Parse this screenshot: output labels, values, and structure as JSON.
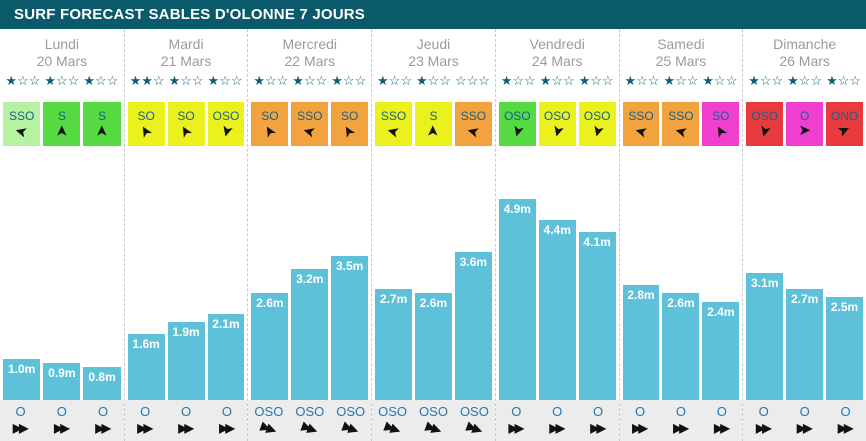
{
  "header": {
    "title": "SURF FORECAST SABLES D'OLONNE 7 JOURS",
    "bg_color": "#0b5a6b"
  },
  "colors": {
    "bar": "#5ec1da",
    "star": "#0d5f76",
    "day_text": "#9b9b9b",
    "wind_label": "#17618c",
    "swell_label": "#2a76ad",
    "swell_row_bg": "#ececec",
    "wind_palegreen": "#b6f2a2",
    "wind_green": "#55da41",
    "wind_yellow": "#eaf11c",
    "wind_orange": "#f2a33e",
    "wind_magenta": "#f03ecf",
    "wind_red": "#e93a3d"
  },
  "chart_data": {
    "type": "bar",
    "title": "SURF FORECAST SABLES D'OLONNE 7 JOURS",
    "unit": "m",
    "ylim": [
      0,
      6
    ],
    "bar_color": "#5ec1da",
    "categories": [
      "Lundi 20 Mars",
      "Mardi 21 Mars",
      "Mercredi 22 Mars",
      "Jeudi 23 Mars",
      "Vendredi 24 Mars",
      "Samedi 25 Mars",
      "Dimanche 26 Mars"
    ],
    "values_per_day": [
      [
        1.0,
        0.9,
        0.8
      ],
      [
        1.6,
        1.9,
        2.1
      ],
      [
        2.6,
        3.2,
        3.5
      ],
      [
        2.7,
        2.6,
        3.6
      ],
      [
        4.9,
        4.4,
        4.1
      ],
      [
        2.8,
        2.6,
        2.4
      ],
      [
        3.1,
        2.7,
        2.5
      ]
    ],
    "values_flat": [
      1.0,
      0.9,
      0.8,
      1.6,
      1.9,
      2.1,
      2.6,
      3.2,
      3.5,
      2.7,
      2.6,
      3.6,
      4.9,
      4.4,
      4.1,
      2.8,
      2.6,
      2.4,
      3.1,
      2.7,
      2.5
    ],
    "star_ratings_per_day": [
      [
        1,
        1,
        1
      ],
      [
        2,
        1,
        1
      ],
      [
        1,
        1,
        1
      ],
      [
        1,
        1,
        0
      ],
      [
        1,
        1,
        1
      ],
      [
        1,
        1,
        1
      ],
      [
        1,
        1,
        1
      ]
    ],
    "stars_max": 3
  },
  "days": [
    {
      "name": "Lundi",
      "date": "20 Mars",
      "stars": [
        1,
        1,
        1
      ],
      "wind": [
        {
          "dir": "SSO",
          "color": "#b6f2a2",
          "arrow_deg": -75
        },
        {
          "dir": "S",
          "color": "#55da41",
          "arrow_deg": 0
        },
        {
          "dir": "S",
          "color": "#55da41",
          "arrow_deg": 0
        }
      ],
      "waves": [
        1.0,
        0.9,
        0.8
      ],
      "wave_labels": [
        "1.0m",
        "0.9m",
        "0.8m"
      ],
      "swell": [
        {
          "dir": "O",
          "arrow_deg": 0
        },
        {
          "dir": "O",
          "arrow_deg": 0
        },
        {
          "dir": "O",
          "arrow_deg": 0
        }
      ]
    },
    {
      "name": "Mardi",
      "date": "21 Mars",
      "stars": [
        2,
        1,
        1
      ],
      "wind": [
        {
          "dir": "SO",
          "color": "#eaf11c",
          "arrow_deg": -30
        },
        {
          "dir": "SO",
          "color": "#eaf11c",
          "arrow_deg": -30
        },
        {
          "dir": "OSO",
          "color": "#eaf11c",
          "arrow_deg": 195
        }
      ],
      "waves": [
        1.6,
        1.9,
        2.1
      ],
      "wave_labels": [
        "1.6m",
        "1.9m",
        "2.1m"
      ],
      "swell": [
        {
          "dir": "O",
          "arrow_deg": 0
        },
        {
          "dir": "O",
          "arrow_deg": 0
        },
        {
          "dir": "O",
          "arrow_deg": 0
        }
      ]
    },
    {
      "name": "Mercredi",
      "date": "22 Mars",
      "stars": [
        1,
        1,
        1
      ],
      "wind": [
        {
          "dir": "SO",
          "color": "#f2a33e",
          "arrow_deg": -30
        },
        {
          "dir": "SSO",
          "color": "#f2a33e",
          "arrow_deg": -75
        },
        {
          "dir": "SO",
          "color": "#f2a33e",
          "arrow_deg": -30
        }
      ],
      "waves": [
        2.6,
        3.2,
        3.5
      ],
      "wave_labels": [
        "2.6m",
        "3.2m",
        "3.5m"
      ],
      "swell": [
        {
          "dir": "OSO",
          "arrow_deg": 20
        },
        {
          "dir": "OSO",
          "arrow_deg": 20
        },
        {
          "dir": "OSO",
          "arrow_deg": 20
        }
      ]
    },
    {
      "name": "Jeudi",
      "date": "23 Mars",
      "stars": [
        1,
        1,
        0
      ],
      "wind": [
        {
          "dir": "SSO",
          "color": "#eaf11c",
          "arrow_deg": -75
        },
        {
          "dir": "S",
          "color": "#eaf11c",
          "arrow_deg": 0
        },
        {
          "dir": "SSO",
          "color": "#f2a33e",
          "arrow_deg": -75
        }
      ],
      "waves": [
        2.7,
        2.6,
        3.6
      ],
      "wave_labels": [
        "2.7m",
        "2.6m",
        "3.6m"
      ],
      "swell": [
        {
          "dir": "OSO",
          "arrow_deg": 20
        },
        {
          "dir": "OSO",
          "arrow_deg": 20
        },
        {
          "dir": "OSO",
          "arrow_deg": 20
        }
      ]
    },
    {
      "name": "Vendredi",
      "date": "24 Mars",
      "stars": [
        1,
        1,
        1
      ],
      "wind": [
        {
          "dir": "OSO",
          "color": "#55da41",
          "arrow_deg": 195
        },
        {
          "dir": "OSO",
          "color": "#eaf11c",
          "arrow_deg": 195
        },
        {
          "dir": "OSO",
          "color": "#eaf11c",
          "arrow_deg": 195
        }
      ],
      "waves": [
        4.9,
        4.4,
        4.1
      ],
      "wave_labels": [
        "4.9m",
        "4.4m",
        "4.1m"
      ],
      "swell": [
        {
          "dir": "O",
          "arrow_deg": 0
        },
        {
          "dir": "O",
          "arrow_deg": 0
        },
        {
          "dir": "O",
          "arrow_deg": 0
        }
      ]
    },
    {
      "name": "Samedi",
      "date": "25 Mars",
      "stars": [
        1,
        1,
        1
      ],
      "wind": [
        {
          "dir": "SSO",
          "color": "#f2a33e",
          "arrow_deg": -75
        },
        {
          "dir": "SSO",
          "color": "#f2a33e",
          "arrow_deg": -75
        },
        {
          "dir": "SO",
          "color": "#f03ecf",
          "arrow_deg": -30
        }
      ],
      "waves": [
        2.8,
        2.6,
        2.4
      ],
      "wave_labels": [
        "2.8m",
        "2.6m",
        "2.4m"
      ],
      "swell": [
        {
          "dir": "O",
          "arrow_deg": 0
        },
        {
          "dir": "O",
          "arrow_deg": 0
        },
        {
          "dir": "O",
          "arrow_deg": 0
        }
      ]
    },
    {
      "name": "Dimanche",
      "date": "26 Mars",
      "stars": [
        1,
        1,
        1
      ],
      "wind": [
        {
          "dir": "OSO",
          "color": "#e93a3d",
          "arrow_deg": 195
        },
        {
          "dir": "O",
          "color": "#f03ecf",
          "arrow_deg": 90
        },
        {
          "dir": "ONO",
          "color": "#e93a3d",
          "arrow_deg": 65
        }
      ],
      "waves": [
        3.1,
        2.7,
        2.5
      ],
      "wave_labels": [
        "3.1m",
        "2.7m",
        "2.5m"
      ],
      "swell": [
        {
          "dir": "O",
          "arrow_deg": 0
        },
        {
          "dir": "O",
          "arrow_deg": 0
        },
        {
          "dir": "O",
          "arrow_deg": 0
        }
      ]
    }
  ]
}
